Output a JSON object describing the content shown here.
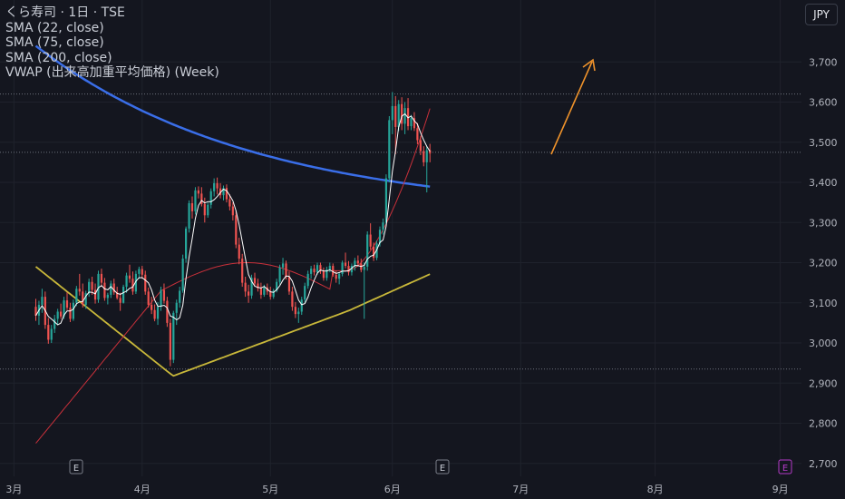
{
  "legend": {
    "title": "くら寿司 · 1日 · TSE",
    "indicators": [
      "SMA (22, close)",
      "SMA (75, close)",
      "SMA (200, close)",
      "VWAP (出来高加重平均価格) (Week)"
    ]
  },
  "currency_button": "JPY",
  "colors": {
    "background": "#14161f",
    "up": "#26a69a",
    "down": "#ef5350",
    "sma22": "#ffffff",
    "sma75": "#c8303a",
    "sma200": "#3a6ee8",
    "vwap": "#c9b83a",
    "arrow": "#f0932b",
    "grid": "#1f222c",
    "axis_text": "#b2b5be",
    "dividend_marker": "#b53bc8"
  },
  "chart_data": {
    "type": "candlestick",
    "y_axis": {
      "ticks": [
        3700,
        3600,
        3500,
        3400,
        3300,
        3200,
        3100,
        3000,
        2900,
        2800,
        2700
      ],
      "tick_labels": [
        "3,700",
        "3,600",
        "3,500",
        "3,400",
        "3,300",
        "3,200",
        "3,100",
        "3,000",
        "2,900",
        "2,800",
        "2,700"
      ],
      "range": [
        2680,
        3785
      ]
    },
    "x_axis": {
      "tick_labels": [
        "3月",
        "4月",
        "5月",
        "6月",
        "7月",
        "8月",
        "9月"
      ],
      "tick_bar_index": [
        3,
        44,
        85,
        124,
        165,
        208,
        248
      ],
      "bar_range": [
        -5,
        266
      ]
    },
    "reference_lines": [
      3620,
      3475,
      2935
    ],
    "candles": [
      {
        "o": 3090,
        "h": 3110,
        "l": 3055,
        "c": 3068
      },
      {
        "o": 3068,
        "h": 3105,
        "l": 3045,
        "c": 3095
      },
      {
        "o": 3095,
        "h": 3135,
        "l": 3075,
        "c": 3115
      },
      {
        "o": 3115,
        "h": 3128,
        "l": 3035,
        "c": 3045
      },
      {
        "o": 3045,
        "h": 3062,
        "l": 2998,
        "c": 3008
      },
      {
        "o": 3008,
        "h": 3045,
        "l": 3000,
        "c": 3035
      },
      {
        "o": 3035,
        "h": 3070,
        "l": 3025,
        "c": 3060
      },
      {
        "o": 3060,
        "h": 3085,
        "l": 3045,
        "c": 3078
      },
      {
        "o": 3078,
        "h": 3098,
        "l": 3060,
        "c": 3066
      },
      {
        "o": 3066,
        "h": 3115,
        "l": 3060,
        "c": 3106
      },
      {
        "o": 3106,
        "h": 3126,
        "l": 3082,
        "c": 3088
      },
      {
        "o": 3088,
        "h": 3100,
        "l": 3052,
        "c": 3060
      },
      {
        "o": 3060,
        "h": 3108,
        "l": 3055,
        "c": 3100
      },
      {
        "o": 3100,
        "h": 3142,
        "l": 3092,
        "c": 3135
      },
      {
        "o": 3135,
        "h": 3172,
        "l": 3118,
        "c": 3128
      },
      {
        "o": 3128,
        "h": 3148,
        "l": 3088,
        "c": 3095
      },
      {
        "o": 3095,
        "h": 3130,
        "l": 3085,
        "c": 3124
      },
      {
        "o": 3124,
        "h": 3160,
        "l": 3115,
        "c": 3152
      },
      {
        "o": 3152,
        "h": 3165,
        "l": 3120,
        "c": 3132
      },
      {
        "o": 3132,
        "h": 3148,
        "l": 3098,
        "c": 3108
      },
      {
        "o": 3108,
        "h": 3180,
        "l": 3100,
        "c": 3172
      },
      {
        "o": 3172,
        "h": 3185,
        "l": 3140,
        "c": 3150
      },
      {
        "o": 3150,
        "h": 3162,
        "l": 3105,
        "c": 3112
      },
      {
        "o": 3112,
        "h": 3125,
        "l": 3096,
        "c": 3120
      },
      {
        "o": 3120,
        "h": 3155,
        "l": 3112,
        "c": 3148
      },
      {
        "o": 3148,
        "h": 3160,
        "l": 3120,
        "c": 3126
      },
      {
        "o": 3126,
        "h": 3140,
        "l": 3108,
        "c": 3112
      },
      {
        "o": 3112,
        "h": 3125,
        "l": 3080,
        "c": 3100
      },
      {
        "o": 3100,
        "h": 3145,
        "l": 3098,
        "c": 3140
      },
      {
        "o": 3140,
        "h": 3175,
        "l": 3125,
        "c": 3168
      },
      {
        "o": 3168,
        "h": 3195,
        "l": 3150,
        "c": 3160
      },
      {
        "o": 3160,
        "h": 3178,
        "l": 3120,
        "c": 3128
      },
      {
        "o": 3128,
        "h": 3180,
        "l": 3122,
        "c": 3172
      },
      {
        "o": 3172,
        "h": 3190,
        "l": 3160,
        "c": 3184
      },
      {
        "o": 3184,
        "h": 3192,
        "l": 3160,
        "c": 3170
      },
      {
        "o": 3170,
        "h": 3180,
        "l": 3120,
        "c": 3128
      },
      {
        "o": 3128,
        "h": 3138,
        "l": 3088,
        "c": 3095
      },
      {
        "o": 3095,
        "h": 3115,
        "l": 3072,
        "c": 3082
      },
      {
        "o": 3082,
        "h": 3096,
        "l": 3054,
        "c": 3060
      },
      {
        "o": 3060,
        "h": 3102,
        "l": 3045,
        "c": 3090
      },
      {
        "o": 3090,
        "h": 3140,
        "l": 3080,
        "c": 3132
      },
      {
        "o": 3132,
        "h": 3148,
        "l": 3098,
        "c": 3105
      },
      {
        "o": 3105,
        "h": 3115,
        "l": 3040,
        "c": 3050
      },
      {
        "o": 3050,
        "h": 3060,
        "l": 2942,
        "c": 2958
      },
      {
        "o": 2958,
        "h": 3080,
        "l": 2950,
        "c": 3075
      },
      {
        "o": 3075,
        "h": 3108,
        "l": 3045,
        "c": 3100
      },
      {
        "o": 3100,
        "h": 3140,
        "l": 3088,
        "c": 3130
      },
      {
        "o": 3130,
        "h": 3220,
        "l": 3125,
        "c": 3210
      },
      {
        "o": 3210,
        "h": 3290,
        "l": 3200,
        "c": 3285
      },
      {
        "o": 3285,
        "h": 3355,
        "l": 3275,
        "c": 3348
      },
      {
        "o": 3348,
        "h": 3365,
        "l": 3310,
        "c": 3328
      },
      {
        "o": 3328,
        "h": 3388,
        "l": 3320,
        "c": 3380
      },
      {
        "o": 3380,
        "h": 3390,
        "l": 3360,
        "c": 3372
      },
      {
        "o": 3372,
        "h": 3388,
        "l": 3340,
        "c": 3346
      },
      {
        "o": 3346,
        "h": 3362,
        "l": 3300,
        "c": 3318
      },
      {
        "o": 3318,
        "h": 3350,
        "l": 3312,
        "c": 3344
      },
      {
        "o": 3344,
        "h": 3385,
        "l": 3335,
        "c": 3378
      },
      {
        "o": 3378,
        "h": 3410,
        "l": 3365,
        "c": 3398
      },
      {
        "o": 3398,
        "h": 3412,
        "l": 3370,
        "c": 3385
      },
      {
        "o": 3385,
        "h": 3398,
        "l": 3360,
        "c": 3368
      },
      {
        "o": 3368,
        "h": 3392,
        "l": 3355,
        "c": 3386
      },
      {
        "o": 3386,
        "h": 3395,
        "l": 3350,
        "c": 3358
      },
      {
        "o": 3358,
        "h": 3370,
        "l": 3330,
        "c": 3340
      },
      {
        "o": 3340,
        "h": 3350,
        "l": 3305,
        "c": 3318
      },
      {
        "o": 3318,
        "h": 3330,
        "l": 3236,
        "c": 3245
      },
      {
        "o": 3245,
        "h": 3262,
        "l": 3196,
        "c": 3210
      },
      {
        "o": 3210,
        "h": 3222,
        "l": 3140,
        "c": 3150
      },
      {
        "o": 3150,
        "h": 3165,
        "l": 3115,
        "c": 3128
      },
      {
        "o": 3128,
        "h": 3145,
        "l": 3100,
        "c": 3118
      },
      {
        "o": 3118,
        "h": 3170,
        "l": 3110,
        "c": 3162
      },
      {
        "o": 3162,
        "h": 3175,
        "l": 3140,
        "c": 3148
      },
      {
        "o": 3148,
        "h": 3160,
        "l": 3128,
        "c": 3136
      },
      {
        "o": 3136,
        "h": 3150,
        "l": 3110,
        "c": 3120
      },
      {
        "o": 3120,
        "h": 3145,
        "l": 3115,
        "c": 3138
      },
      {
        "o": 3138,
        "h": 3148,
        "l": 3120,
        "c": 3128
      },
      {
        "o": 3128,
        "h": 3140,
        "l": 3108,
        "c": 3115
      },
      {
        "o": 3115,
        "h": 3135,
        "l": 3110,
        "c": 3130
      },
      {
        "o": 3130,
        "h": 3160,
        "l": 3126,
        "c": 3152
      },
      {
        "o": 3152,
        "h": 3195,
        "l": 3145,
        "c": 3188
      },
      {
        "o": 3188,
        "h": 3212,
        "l": 3170,
        "c": 3198
      },
      {
        "o": 3198,
        "h": 3205,
        "l": 3158,
        "c": 3165
      },
      {
        "o": 3165,
        "h": 3178,
        "l": 3120,
        "c": 3128
      },
      {
        "o": 3128,
        "h": 3140,
        "l": 3080,
        "c": 3090
      },
      {
        "o": 3090,
        "h": 3102,
        "l": 3062,
        "c": 3072
      },
      {
        "o": 3072,
        "h": 3088,
        "l": 3050,
        "c": 3078
      },
      {
        "o": 3078,
        "h": 3115,
        "l": 3070,
        "c": 3108
      },
      {
        "o": 3108,
        "h": 3150,
        "l": 3100,
        "c": 3142
      },
      {
        "o": 3142,
        "h": 3180,
        "l": 3135,
        "c": 3172
      },
      {
        "o": 3172,
        "h": 3192,
        "l": 3160,
        "c": 3185
      },
      {
        "o": 3185,
        "h": 3195,
        "l": 3168,
        "c": 3176
      },
      {
        "o": 3176,
        "h": 3200,
        "l": 3170,
        "c": 3194
      },
      {
        "o": 3194,
        "h": 3200,
        "l": 3172,
        "c": 3180
      },
      {
        "o": 3180,
        "h": 3188,
        "l": 3155,
        "c": 3162
      },
      {
        "o": 3162,
        "h": 3190,
        "l": 3155,
        "c": 3183
      },
      {
        "o": 3183,
        "h": 3200,
        "l": 3176,
        "c": 3192
      },
      {
        "o": 3192,
        "h": 3198,
        "l": 3165,
        "c": 3170
      },
      {
        "o": 3170,
        "h": 3180,
        "l": 3150,
        "c": 3160
      },
      {
        "o": 3160,
        "h": 3176,
        "l": 3146,
        "c": 3172
      },
      {
        "o": 3172,
        "h": 3205,
        "l": 3166,
        "c": 3200
      },
      {
        "o": 3200,
        "h": 3225,
        "l": 3186,
        "c": 3192
      },
      {
        "o": 3192,
        "h": 3204,
        "l": 3168,
        "c": 3176
      },
      {
        "o": 3176,
        "h": 3198,
        "l": 3168,
        "c": 3192
      },
      {
        "o": 3192,
        "h": 3212,
        "l": 3180,
        "c": 3205
      },
      {
        "o": 3205,
        "h": 3218,
        "l": 3190,
        "c": 3198
      },
      {
        "o": 3198,
        "h": 3210,
        "l": 3176,
        "c": 3182
      },
      {
        "o": 3182,
        "h": 3200,
        "l": 3060,
        "c": 3190
      },
      {
        "o": 3190,
        "h": 3278,
        "l": 3180,
        "c": 3270
      },
      {
        "o": 3270,
        "h": 3298,
        "l": 3232,
        "c": 3240
      },
      {
        "o": 3240,
        "h": 3250,
        "l": 3204,
        "c": 3212
      },
      {
        "o": 3212,
        "h": 3255,
        "l": 3206,
        "c": 3248
      },
      {
        "o": 3248,
        "h": 3290,
        "l": 3240,
        "c": 3282
      },
      {
        "o": 3282,
        "h": 3310,
        "l": 3270,
        "c": 3300
      },
      {
        "o": 3300,
        "h": 3420,
        "l": 3292,
        "c": 3410
      },
      {
        "o": 3410,
        "h": 3565,
        "l": 3400,
        "c": 3555
      },
      {
        "o": 3555,
        "h": 3625,
        "l": 3520,
        "c": 3590
      },
      {
        "o": 3590,
        "h": 3615,
        "l": 3470,
        "c": 3538
      },
      {
        "o": 3538,
        "h": 3605,
        "l": 3528,
        "c": 3595
      },
      {
        "o": 3595,
        "h": 3612,
        "l": 3530,
        "c": 3546
      },
      {
        "o": 3546,
        "h": 3600,
        "l": 3520,
        "c": 3585
      },
      {
        "o": 3585,
        "h": 3610,
        "l": 3530,
        "c": 3540
      },
      {
        "o": 3540,
        "h": 3568,
        "l": 3530,
        "c": 3560
      },
      {
        "o": 3560,
        "h": 3575,
        "l": 3528,
        "c": 3535
      },
      {
        "o": 3535,
        "h": 3548,
        "l": 3495,
        "c": 3505
      },
      {
        "o": 3505,
        "h": 3515,
        "l": 3468,
        "c": 3478
      },
      {
        "o": 3478,
        "h": 3490,
        "l": 3440,
        "c": 3450
      },
      {
        "o": 3450,
        "h": 3490,
        "l": 3375,
        "c": 3480
      },
      {
        "o": 3480,
        "h": 3496,
        "l": 3450,
        "c": 3472
      }
    ],
    "x_labels_bar_map": "candle index i maps to bar position 10+i"
  },
  "earnings_markers": [
    "E",
    "E",
    "E"
  ],
  "chart_type_extra": {
    "arrow_label": ""
  }
}
